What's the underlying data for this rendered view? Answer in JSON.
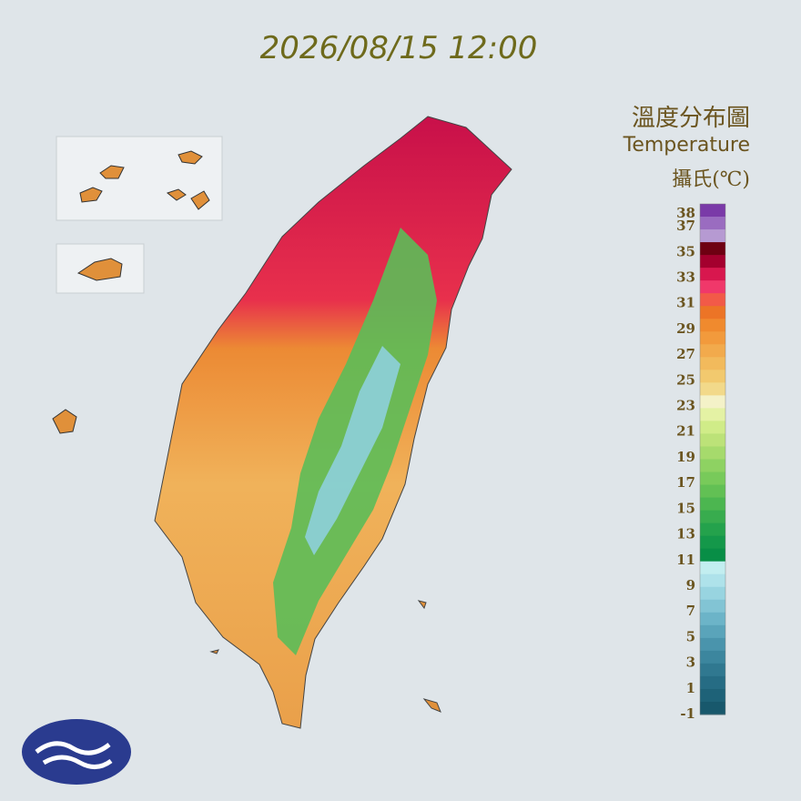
{
  "header": {
    "timestamp": "2026/08/15 12:00"
  },
  "legend": {
    "title": "溫度分布圖",
    "subtitle": "Temperature",
    "unit": "攝氏(℃)",
    "ticks": [
      38,
      37,
      35,
      33,
      31,
      29,
      27,
      25,
      23,
      21,
      19,
      17,
      15,
      13,
      11,
      9,
      7,
      5,
      3,
      1,
      -1
    ],
    "colors": [
      "#7a3aa8",
      "#9a6cc0",
      "#b69ad2",
      "#6e0012",
      "#a4002e",
      "#d8174e",
      "#f0386a",
      "#f25a48",
      "#ec7426",
      "#f08a2e",
      "#f29a3c",
      "#f2aa4c",
      "#f2ba5c",
      "#f2c96e",
      "#f2d98a",
      "#f4f2c8",
      "#e4f2a4",
      "#d0ec88",
      "#bce278",
      "#a6da6c",
      "#8ed262",
      "#78ca5a",
      "#62c054",
      "#4cb650",
      "#38ac4e",
      "#24a24c",
      "#14984a",
      "#088e46",
      "#c2eef0",
      "#aee2ea",
      "#98d4e0",
      "#82c4d4",
      "#6cb4c8",
      "#5aa4ba",
      "#4a94ac",
      "#3c869e",
      "#307890",
      "#266c84",
      "#1e6278",
      "#18586c"
    ]
  }
}
